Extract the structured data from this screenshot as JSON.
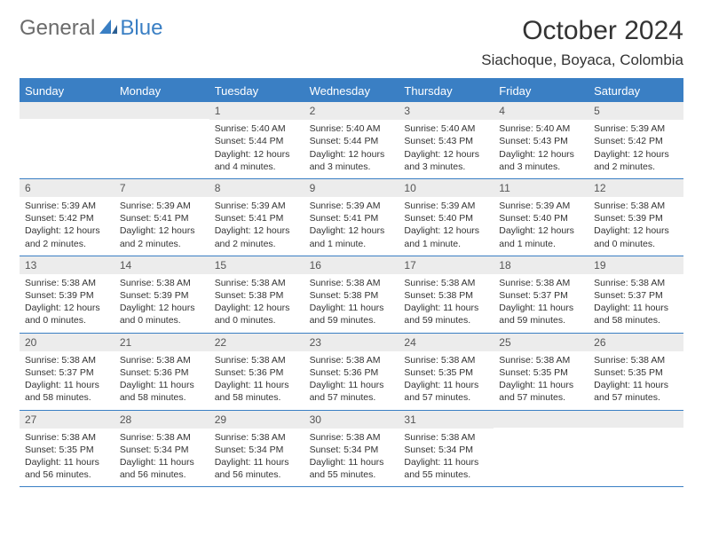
{
  "logo": {
    "text1": "General",
    "text2": "Blue"
  },
  "title": "October 2024",
  "location": "Siachoque, Boyaca, Colombia",
  "colors": {
    "accent": "#3a7fc4",
    "header_bg": "#3a7fc4",
    "header_text": "#ffffff",
    "daynum_bg": "#ececec",
    "border": "#3a7fc4",
    "text": "#333333",
    "logo_gray": "#6b6b6b"
  },
  "weekdays": [
    "Sunday",
    "Monday",
    "Tuesday",
    "Wednesday",
    "Thursday",
    "Friday",
    "Saturday"
  ],
  "weeks": [
    [
      null,
      null,
      {
        "n": "1",
        "sr": "5:40 AM",
        "ss": "5:44 PM",
        "dl": "12 hours and 4 minutes."
      },
      {
        "n": "2",
        "sr": "5:40 AM",
        "ss": "5:44 PM",
        "dl": "12 hours and 3 minutes."
      },
      {
        "n": "3",
        "sr": "5:40 AM",
        "ss": "5:43 PM",
        "dl": "12 hours and 3 minutes."
      },
      {
        "n": "4",
        "sr": "5:40 AM",
        "ss": "5:43 PM",
        "dl": "12 hours and 3 minutes."
      },
      {
        "n": "5",
        "sr": "5:39 AM",
        "ss": "5:42 PM",
        "dl": "12 hours and 2 minutes."
      }
    ],
    [
      {
        "n": "6",
        "sr": "5:39 AM",
        "ss": "5:42 PM",
        "dl": "12 hours and 2 minutes."
      },
      {
        "n": "7",
        "sr": "5:39 AM",
        "ss": "5:41 PM",
        "dl": "12 hours and 2 minutes."
      },
      {
        "n": "8",
        "sr": "5:39 AM",
        "ss": "5:41 PM",
        "dl": "12 hours and 2 minutes."
      },
      {
        "n": "9",
        "sr": "5:39 AM",
        "ss": "5:41 PM",
        "dl": "12 hours and 1 minute."
      },
      {
        "n": "10",
        "sr": "5:39 AM",
        "ss": "5:40 PM",
        "dl": "12 hours and 1 minute."
      },
      {
        "n": "11",
        "sr": "5:39 AM",
        "ss": "5:40 PM",
        "dl": "12 hours and 1 minute."
      },
      {
        "n": "12",
        "sr": "5:38 AM",
        "ss": "5:39 PM",
        "dl": "12 hours and 0 minutes."
      }
    ],
    [
      {
        "n": "13",
        "sr": "5:38 AM",
        "ss": "5:39 PM",
        "dl": "12 hours and 0 minutes."
      },
      {
        "n": "14",
        "sr": "5:38 AM",
        "ss": "5:39 PM",
        "dl": "12 hours and 0 minutes."
      },
      {
        "n": "15",
        "sr": "5:38 AM",
        "ss": "5:38 PM",
        "dl": "12 hours and 0 minutes."
      },
      {
        "n": "16",
        "sr": "5:38 AM",
        "ss": "5:38 PM",
        "dl": "11 hours and 59 minutes."
      },
      {
        "n": "17",
        "sr": "5:38 AM",
        "ss": "5:38 PM",
        "dl": "11 hours and 59 minutes."
      },
      {
        "n": "18",
        "sr": "5:38 AM",
        "ss": "5:37 PM",
        "dl": "11 hours and 59 minutes."
      },
      {
        "n": "19",
        "sr": "5:38 AM",
        "ss": "5:37 PM",
        "dl": "11 hours and 58 minutes."
      }
    ],
    [
      {
        "n": "20",
        "sr": "5:38 AM",
        "ss": "5:37 PM",
        "dl": "11 hours and 58 minutes."
      },
      {
        "n": "21",
        "sr": "5:38 AM",
        "ss": "5:36 PM",
        "dl": "11 hours and 58 minutes."
      },
      {
        "n": "22",
        "sr": "5:38 AM",
        "ss": "5:36 PM",
        "dl": "11 hours and 58 minutes."
      },
      {
        "n": "23",
        "sr": "5:38 AM",
        "ss": "5:36 PM",
        "dl": "11 hours and 57 minutes."
      },
      {
        "n": "24",
        "sr": "5:38 AM",
        "ss": "5:35 PM",
        "dl": "11 hours and 57 minutes."
      },
      {
        "n": "25",
        "sr": "5:38 AM",
        "ss": "5:35 PM",
        "dl": "11 hours and 57 minutes."
      },
      {
        "n": "26",
        "sr": "5:38 AM",
        "ss": "5:35 PM",
        "dl": "11 hours and 57 minutes."
      }
    ],
    [
      {
        "n": "27",
        "sr": "5:38 AM",
        "ss": "5:35 PM",
        "dl": "11 hours and 56 minutes."
      },
      {
        "n": "28",
        "sr": "5:38 AM",
        "ss": "5:34 PM",
        "dl": "11 hours and 56 minutes."
      },
      {
        "n": "29",
        "sr": "5:38 AM",
        "ss": "5:34 PM",
        "dl": "11 hours and 56 minutes."
      },
      {
        "n": "30",
        "sr": "5:38 AM",
        "ss": "5:34 PM",
        "dl": "11 hours and 55 minutes."
      },
      {
        "n": "31",
        "sr": "5:38 AM",
        "ss": "5:34 PM",
        "dl": "11 hours and 55 minutes."
      },
      null,
      null
    ]
  ],
  "labels": {
    "sunrise": "Sunrise:",
    "sunset": "Sunset:",
    "daylight": "Daylight:"
  }
}
